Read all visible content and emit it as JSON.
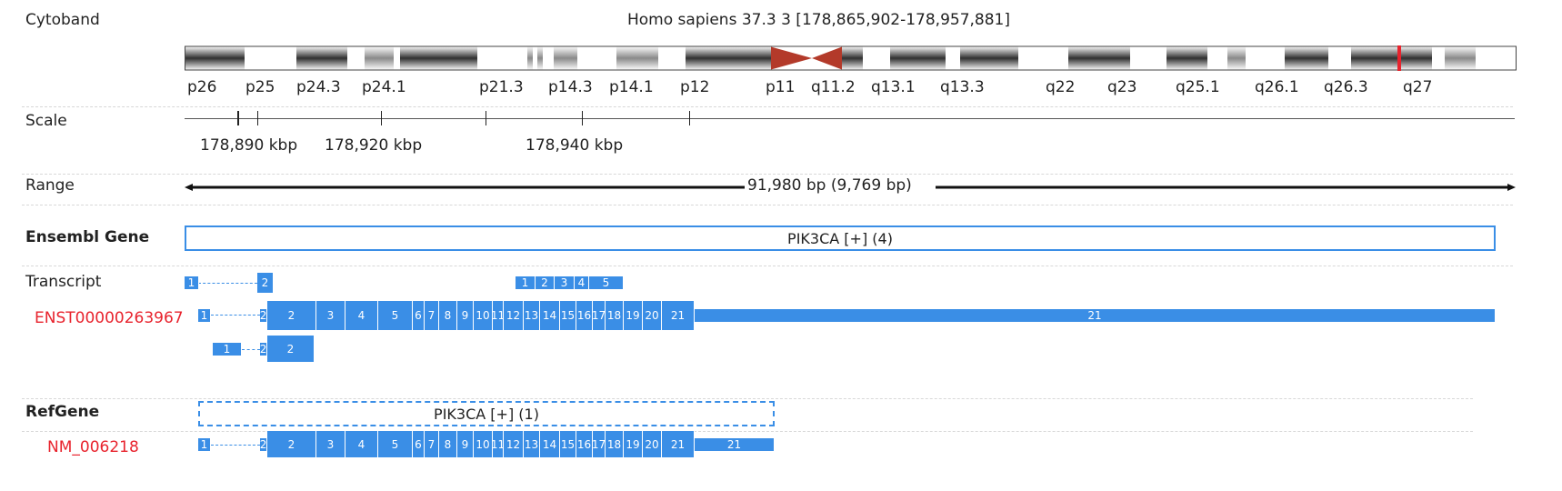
{
  "cytoband": {
    "label": "Cytoband",
    "title": "Homo sapiens 37.3 3 [178,865,902-178,957,881]",
    "bands": [
      "p26",
      "p25",
      "p24.3",
      "p24.1",
      "p21.3",
      "p14.3",
      "p14.1",
      "p12",
      "p11",
      "q11.2",
      "q13.1",
      "q13.3",
      "q22",
      "q23",
      "q25.1",
      "q26.1",
      "q26.3",
      "q27"
    ]
  },
  "scale": {
    "label": "Scale",
    "ticks": [
      "178,890 kbp",
      "178,920 kbp",
      "178,940 kbp"
    ]
  },
  "range": {
    "label": "Range",
    "text": "91,980 bp (9,769 bp)"
  },
  "ensembl": {
    "label": "Ensembl Gene",
    "gene": "PIK3CA [+] (4)"
  },
  "transcript": {
    "label": "Transcript",
    "row1_exons": [
      "1",
      "2",
      "1",
      "2",
      "3",
      "4",
      "5"
    ],
    "id": "ENST00000263967",
    "row2_exons": [
      "1",
      "2",
      "2",
      "3",
      "4",
      "5",
      "6",
      "7",
      "8",
      "9",
      "10",
      "11",
      "12",
      "13",
      "14",
      "15",
      "16",
      "17",
      "18",
      "19",
      "20",
      "21",
      "21"
    ],
    "row3_exons": [
      "1",
      "2",
      "2"
    ]
  },
  "refgene": {
    "label": "RefGene",
    "gene": "PIK3CA [+] (1)",
    "id": "NM_006218",
    "exons": [
      "1",
      "2",
      "2",
      "3",
      "4",
      "5",
      "6",
      "7",
      "8",
      "9",
      "10",
      "11",
      "12",
      "13",
      "14",
      "15",
      "16",
      "17",
      "18",
      "19",
      "20",
      "21",
      "21"
    ]
  },
  "colors": {
    "exon": "#3a8ee6",
    "centromere": "#b33a2a",
    "highlight": "#e8232d"
  }
}
